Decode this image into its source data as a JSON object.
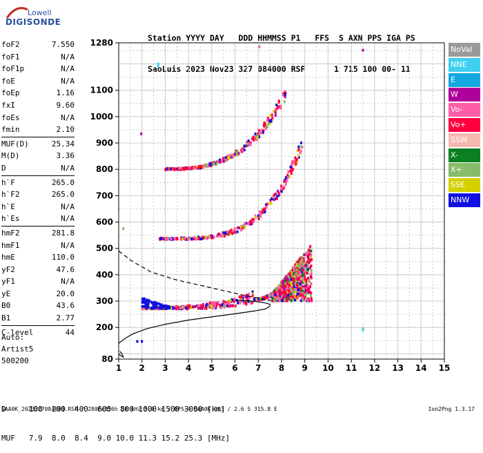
{
  "logo": {
    "line1": "Lowell",
    "line2": "DIGISONDE"
  },
  "header": {
    "line1": "Station YYYY DAY   DDD HHMMSS P1   FFS  S AXN PPS IGA PS",
    "line2": "SaoLuis 2023 Nov23 327 084000 RSF      1 715 100 00- 11"
  },
  "params": [
    [
      {
        "k": "foF2",
        "v": "7.550"
      },
      {
        "k": "foF1",
        "v": "N/A"
      },
      {
        "k": "foF1p",
        "v": "N/A"
      },
      {
        "k": "foE",
        "v": "N/A"
      },
      {
        "k": "foEp",
        "v": "1.16"
      },
      {
        "k": "fxI",
        "v": "9.60"
      },
      {
        "k": "foEs",
        "v": "N/A"
      },
      {
        "k": "fmin",
        "v": "2.10"
      }
    ],
    [
      {
        "k": "MUF(D)",
        "v": "25.34"
      },
      {
        "k": "M(D)",
        "v": "3.36"
      },
      {
        "k": "D",
        "v": "N/A"
      }
    ],
    [
      {
        "k": "h`F",
        "v": "265.0"
      },
      {
        "k": "h`F2",
        "v": "265.0"
      },
      {
        "k": "h`E",
        "v": "N/A"
      },
      {
        "k": "h`Es",
        "v": "N/A"
      }
    ],
    [
      {
        "k": "hmF2",
        "v": "281.8"
      },
      {
        "k": "hmF1",
        "v": "N/A"
      },
      {
        "k": "hmE",
        "v": "110.0"
      },
      {
        "k": "yF2",
        "v": "47.6"
      },
      {
        "k": "yF1",
        "v": "N/A"
      },
      {
        "k": "yE",
        "v": "20.0"
      },
      {
        "k": "B0",
        "v": "43.6"
      },
      {
        "k": "B1",
        "v": "2.77"
      }
    ],
    [
      {
        "k": "C-level",
        "v": "44"
      }
    ]
  ],
  "auto": {
    "line1": "Auto:",
    "line2": "Artist5",
    "line3": "500200"
  },
  "footer": {
    "d_line": "D     100  200  400  600  800 1000 1500 3000 [km]",
    "muf_line": "MUF   7.9  8.0  8.4  9.0 10.0 11.3 15.2 25.3 [MHz]",
    "source": "SAA0K_2023327084000.RSF / 280fx256h 50 kHz 5.0 km / DPS-4 SAA0K 903 / 2.6 S 315.8 E",
    "version": "Ion2Png 1.3.17"
  },
  "legend": [
    {
      "label": "NoVal",
      "color": "#9a9a9a"
    },
    {
      "label": "NNE",
      "color": "#3fd0f0"
    },
    {
      "label": "E",
      "color": "#12a8e0"
    },
    {
      "label": "W",
      "color": "#b0009a"
    },
    {
      "label": "Vo-",
      "color": "#ff5ea6"
    },
    {
      "label": "Vo+",
      "color": "#ff003f"
    },
    {
      "label": "SSW",
      "color": "#f7b8b0"
    },
    {
      "label": "X-",
      "color": "#0a8020"
    },
    {
      "label": "X+",
      "color": "#86bc6a"
    },
    {
      "label": "SSE",
      "color": "#d4d000"
    },
    {
      "label": "NNW",
      "color": "#1010e0"
    }
  ],
  "chart_data": {
    "type": "scatter",
    "title": "",
    "xlabel": "",
    "ylabel": "",
    "xlim": [
      1,
      15
    ],
    "ylim": [
      80,
      1280
    ],
    "xticks": [
      "1",
      "2",
      "3",
      "4",
      "5",
      "6",
      "7",
      "8",
      "9",
      "10",
      "11",
      "12",
      "13",
      "14",
      "15"
    ],
    "yticks": [
      "80",
      "200",
      "300",
      "400",
      "500",
      "600",
      "700",
      "800",
      "900",
      "1000",
      "1100",
      "1280"
    ],
    "grid": true,
    "series": [
      {
        "name": "profile",
        "kind": "line",
        "color": "#000000",
        "points": [
          [
            1.0,
            140
          ],
          [
            1.3,
            160
          ],
          [
            1.6,
            175
          ],
          [
            2.2,
            195
          ],
          [
            3,
            212
          ],
          [
            4,
            228
          ],
          [
            5,
            240
          ],
          [
            6,
            252
          ],
          [
            6.8,
            262
          ],
          [
            7.3,
            270
          ],
          [
            7.5,
            280
          ],
          [
            7.5,
            288
          ],
          [
            7.3,
            293
          ],
          [
            7.0,
            297
          ],
          [
            6.5,
            302
          ],
          [
            6.0,
            303
          ]
        ]
      },
      {
        "name": "profile-base",
        "kind": "line",
        "color": "#000000",
        "points": [
          [
            1.0,
            100
          ],
          [
            1.1,
            92
          ],
          [
            1.2,
            88
          ],
          [
            1.15,
            98
          ],
          [
            1.05,
            110
          ]
        ]
      },
      {
        "name": "extrapolation",
        "kind": "dashed",
        "color": "#000000",
        "points": [
          [
            1.0,
            490
          ],
          [
            1.6,
            450
          ],
          [
            2.4,
            410
          ],
          [
            3.5,
            380
          ],
          [
            4.5,
            360
          ],
          [
            5.5,
            340
          ],
          [
            6.5,
            320
          ],
          [
            7.2,
            308
          ],
          [
            7.55,
            302
          ]
        ]
      }
    ],
    "echo_traces": [
      {
        "name": "1F trace",
        "x_start": 2.0,
        "x_end": 6.8,
        "y_start": 272,
        "y_end": 305,
        "exp": 3.2
      },
      {
        "name": "1F rise",
        "x_start": 6.8,
        "x_end": 8.8,
        "y_start": 305,
        "y_end": 430,
        "exp": 2.2
      },
      {
        "name": "2F trace",
        "x_start": 2.7,
        "x_end": 8.9,
        "y_start": 535,
        "y_end": 890,
        "exp": 4.0
      },
      {
        "name": "3F trace",
        "x_start": 3.0,
        "x_end": 8.2,
        "y_start": 800,
        "y_end": 1080,
        "exp": 3.0
      }
    ]
  }
}
